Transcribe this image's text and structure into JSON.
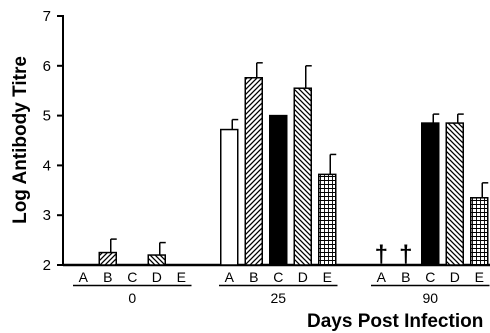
{
  "chart_data": {
    "type": "bar",
    "title": "",
    "xlabel": "Days Post Infection",
    "ylabel": "Log Antibody Titre",
    "ylim": [
      2,
      7
    ],
    "yticks": [
      "2",
      "3",
      "4",
      "5",
      "6",
      "7"
    ],
    "groups": [
      "0",
      "25",
      "90"
    ],
    "categories": [
      "A",
      "B",
      "C",
      "D",
      "E"
    ],
    "dagger_symbol": "†",
    "bars": [
      {
        "group": "0",
        "category": "B",
        "value": 2.25,
        "error": 0.27,
        "pattern": "diagonal-right"
      },
      {
        "group": "0",
        "category": "D",
        "value": 2.2,
        "error": 0.25,
        "pattern": "diagonal-left"
      },
      {
        "group": "25",
        "category": "A",
        "value": 4.72,
        "error": 0.2,
        "pattern": "white"
      },
      {
        "group": "25",
        "category": "B",
        "value": 5.76,
        "error": 0.3,
        "pattern": "diagonal-right"
      },
      {
        "group": "25",
        "category": "C",
        "value": 5.0,
        "error": 0,
        "pattern": "black"
      },
      {
        "group": "25",
        "category": "D",
        "value": 5.55,
        "error": 0.45,
        "pattern": "diagonal-left"
      },
      {
        "group": "25",
        "category": "E",
        "value": 3.82,
        "error": 0.4,
        "pattern": "grid"
      },
      {
        "group": "90",
        "category": "C",
        "value": 4.85,
        "error": 0.18,
        "pattern": "black"
      },
      {
        "group": "90",
        "category": "D",
        "value": 4.85,
        "error": 0.18,
        "pattern": "diagonal-left"
      },
      {
        "group": "90",
        "category": "E",
        "value": 3.35,
        "error": 0.3,
        "pattern": "grid"
      }
    ],
    "daggers": [
      {
        "group": "90",
        "category": "A"
      },
      {
        "group": "90",
        "category": "B"
      }
    ],
    "grid": false,
    "legend": "none"
  }
}
